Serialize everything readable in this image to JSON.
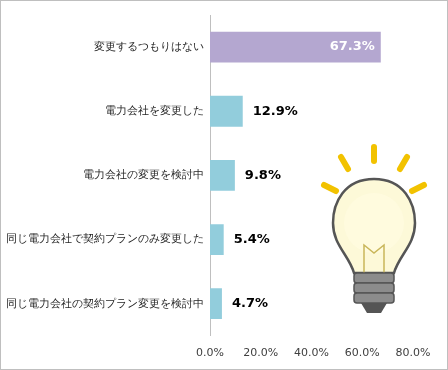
{
  "chart_data": {
    "type": "bar",
    "orientation": "horizontal",
    "categories": [
      "変更するつもりはない",
      "電力会社を変更した",
      "電力会社の変更を検討中",
      "同じ電力会社で契約プランのみ変更した",
      "同じ電力会社の契約プラン変更を検討中"
    ],
    "values": [
      67.3,
      12.9,
      9.8,
      5.4,
      4.7
    ],
    "value_labels": [
      "67.3%",
      "12.9%",
      "9.8%",
      "5.4%",
      "4.7%"
    ],
    "colors": [
      "#b4a7d0",
      "#92cddc",
      "#92cddc",
      "#92cddc",
      "#92cddc"
    ],
    "xlim": [
      0,
      80
    ],
    "xticks": [
      {
        "value": 0,
        "label": "0.0%"
      },
      {
        "value": 20,
        "label": "20.0%"
      },
      {
        "value": 40,
        "label": "40.0%"
      },
      {
        "value": 60,
        "label": "60.0%"
      },
      {
        "value": 80,
        "label": "80.0%"
      }
    ],
    "grid": false,
    "data_labels": true
  }
}
